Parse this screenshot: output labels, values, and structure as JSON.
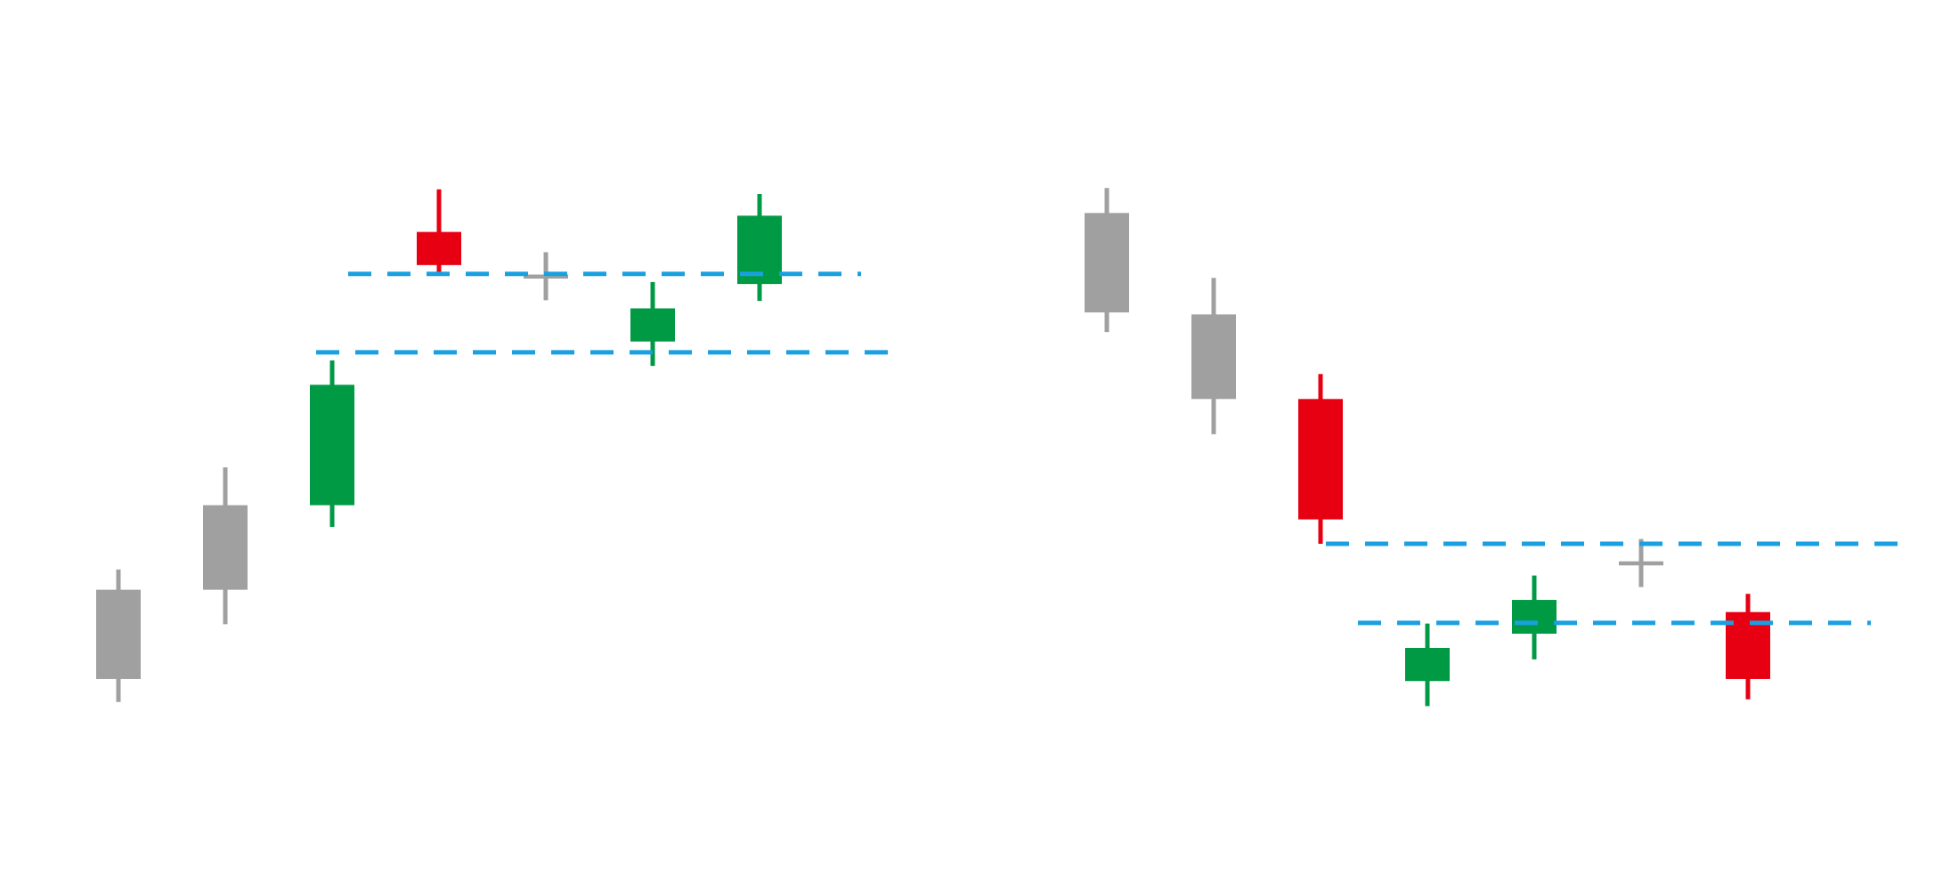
{
  "chart_data": [
    {
      "type": "candlestick",
      "panel": "left",
      "colors": {
        "neutral": "#a0a0a0",
        "bullish": "#009a44",
        "bearish": "#e60012",
        "level_line": "#1aa0e0"
      },
      "y_axis": {
        "inverted": false,
        "ylim": [
          0,
          1000
        ]
      },
      "candles": [
        {
          "color": "neutral",
          "body": [
            154,
            286
          ],
          "wick": [
            120,
            316
          ]
        },
        {
          "color": "neutral",
          "body": [
            286,
            411
          ],
          "wick": [
            235,
            467
          ]
        },
        {
          "color": "bullish",
          "body": [
            411,
            589
          ],
          "wick": [
            379,
            625
          ]
        },
        {
          "color": "bearish",
          "body": [
            766,
            815
          ],
          "wick": [
            753,
            878
          ]
        },
        {
          "color": "neutral",
          "body": [
            746,
            752
          ],
          "wick": [
            714,
            785
          ]
        },
        {
          "color": "bullish",
          "body": [
            653,
            702
          ],
          "wick": [
            617,
            741
          ]
        },
        {
          "color": "bullish",
          "body": [
            738,
            839
          ],
          "wick": [
            713,
            871
          ]
        }
      ],
      "levels": [
        {
          "value": 753,
          "x_range": [
            3.15,
            7.95
          ]
        },
        {
          "value": 637,
          "x_range": [
            2.85,
            8.25
          ]
        }
      ]
    },
    {
      "type": "candlestick",
      "panel": "right",
      "colors": {
        "neutral": "#a0a0a0",
        "bullish": "#009a44",
        "bearish": "#e60012",
        "level_line": "#1aa0e0"
      },
      "y_axis": {
        "inverted": false,
        "ylim": [
          0,
          1000
        ]
      },
      "candles": [
        {
          "color": "neutral",
          "body": [
            696,
            843
          ],
          "wick": [
            667,
            880
          ]
        },
        {
          "color": "neutral",
          "body": [
            568,
            693
          ],
          "wick": [
            516,
            747
          ]
        },
        {
          "color": "bearish",
          "body": [
            390,
            568
          ],
          "wick": [
            354,
            605
          ]
        },
        {
          "color": "bullish",
          "body": [
            151,
            200
          ],
          "wick": [
            114,
            236
          ]
        },
        {
          "color": "bullish",
          "body": [
            221,
            271
          ],
          "wick": [
            183,
            307
          ]
        },
        {
          "color": "neutral",
          "body": [
            322,
            328
          ],
          "wick": [
            290,
            361
          ]
        },
        {
          "color": "bearish",
          "body": [
            154,
            253
          ],
          "wick": [
            124,
            280
          ]
        }
      ],
      "levels": [
        {
          "value": 354,
          "x_range": [
            3.05,
            8.45
          ]
        },
        {
          "value": 237,
          "x_range": [
            3.35,
            8.15
          ]
        }
      ]
    }
  ]
}
